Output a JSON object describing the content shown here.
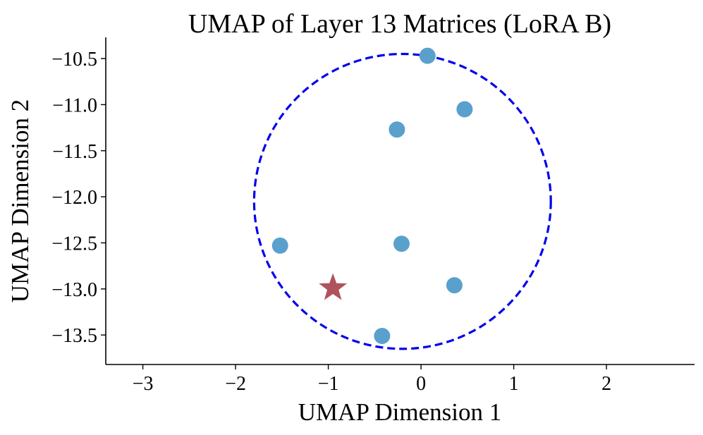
{
  "chart_data": {
    "type": "scatter",
    "title": "UMAP of Layer 13 Matrices (LoRA B)",
    "xlabel": "UMAP Dimension 1",
    "ylabel": "UMAP Dimension 2",
    "xlim": [
      -3.4,
      2.95
    ],
    "ylim": [
      -13.82,
      -10.27
    ],
    "xticks": [
      -3,
      -2,
      -1,
      0,
      1,
      2
    ],
    "xtick_labels": [
      "−3",
      "−2",
      "−1",
      "0",
      "1",
      "2"
    ],
    "yticks": [
      -10.5,
      -11.0,
      -11.5,
      -12.0,
      -12.5,
      -13.0,
      -13.5
    ],
    "ytick_labels": [
      "−10.5",
      "−11.0",
      "−11.5",
      "−12.0",
      "−12.5",
      "−13.0",
      "−13.5"
    ],
    "grid": false,
    "series": [
      {
        "marker": "circle",
        "color": "#5aa0cc",
        "points": [
          {
            "x": 0.07,
            "y": -10.47
          },
          {
            "x": 0.47,
            "y": -11.05
          },
          {
            "x": -0.26,
            "y": -11.27
          },
          {
            "x": -1.52,
            "y": -12.53
          },
          {
            "x": -0.21,
            "y": -12.51
          },
          {
            "x": 0.36,
            "y": -12.96
          },
          {
            "x": -0.42,
            "y": -13.51
          }
        ]
      },
      {
        "marker": "star",
        "color": "#b0525e",
        "points": [
          {
            "x": -0.95,
            "y": -12.99
          }
        ]
      }
    ],
    "annotations": [
      {
        "type": "dashed-circle",
        "color": "#0000ee",
        "center": {
          "x": -0.2,
          "y": -12.05
        },
        "radius_x": 1.6,
        "radius_y": 1.6
      }
    ]
  }
}
